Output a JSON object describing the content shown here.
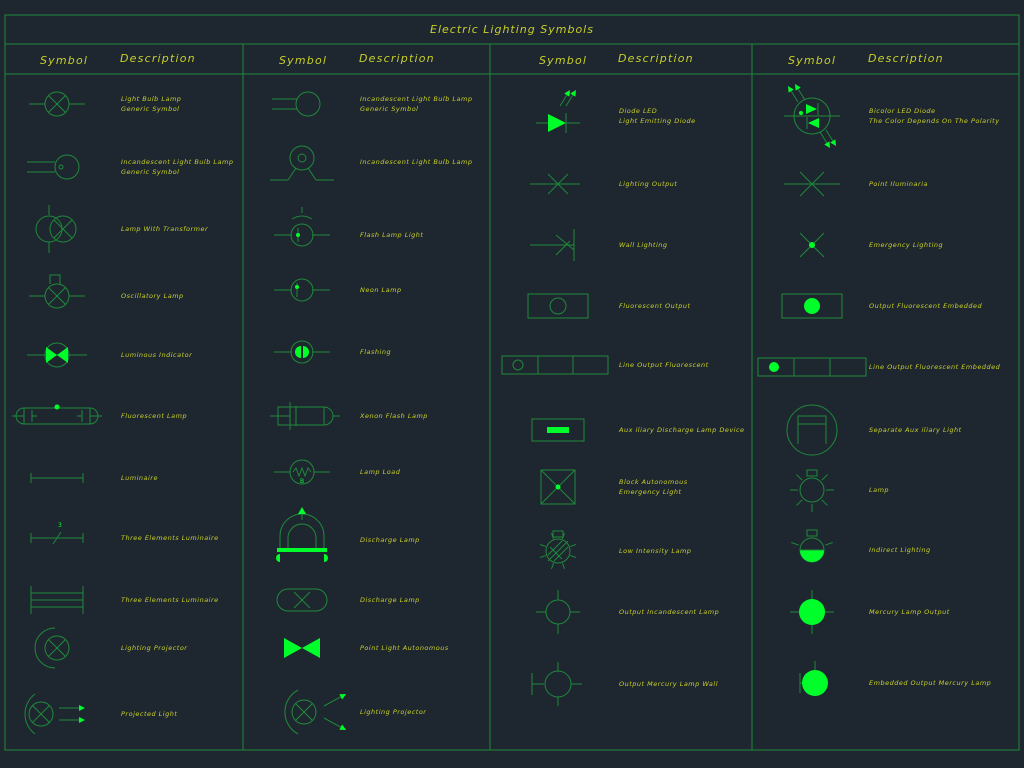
{
  "colors": {
    "background": "#1e2630",
    "line": "#1f8a3a",
    "symbol": "#00ff2a",
    "text": "#c8d028"
  },
  "title": "Electric Lighting Symbols",
  "headers": {
    "symbol": [
      "Symbol",
      "Symbol",
      "Symbol",
      "Symbol"
    ],
    "description": [
      "Description",
      "Description",
      "Description",
      "Description"
    ]
  },
  "columns": [
    {
      "items": [
        {
          "icon": "light-bulb-lamp-icon",
          "lines": [
            "Light Bulb Lamp",
            "Generic Symbol"
          ]
        },
        {
          "icon": "incandescent-lamp-icon",
          "lines": [
            "Incandescent Light Bulb Lamp",
            "Generic Symbol"
          ]
        },
        {
          "icon": "lamp-with-transformer-icon",
          "lines": [
            "Lamp With Transformer"
          ]
        },
        {
          "icon": "oscillatory-lamp-icon",
          "lines": [
            "Oscillatory Lamp"
          ]
        },
        {
          "icon": "luminous-indicator-icon",
          "lines": [
            "Luminous Indicator"
          ]
        },
        {
          "icon": "fluorescent-lamp-icon",
          "lines": [
            "Fluorescent Lamp"
          ]
        },
        {
          "icon": "luminaire-icon",
          "lines": [
            "Luminaire"
          ]
        },
        {
          "icon": "three-elements-luminaire-icon",
          "lines": [
            "Three Elements Luminaire"
          ]
        },
        {
          "icon": "three-elements-luminaire-bars-icon",
          "lines": [
            "Three Elements Luminaire"
          ]
        },
        {
          "icon": "lighting-projector-icon",
          "lines": [
            "Lighting Projector"
          ]
        },
        {
          "icon": "projected-light-icon",
          "lines": [
            "Projected Light"
          ]
        }
      ]
    },
    {
      "items": [
        {
          "icon": "incandescent-light-bulb-lamp-icon",
          "lines": [
            "Incandescent Light Bulb Lamp",
            "Generic Symbol"
          ]
        },
        {
          "icon": "incandescent-lamp-base-icon",
          "lines": [
            "Incandescent Light Bulb Lamp"
          ]
        },
        {
          "icon": "flash-lamp-light-icon",
          "lines": [
            "Flash Lamp Light"
          ]
        },
        {
          "icon": "neon-lamp-icon",
          "lines": [
            "Neon Lamp"
          ]
        },
        {
          "icon": "flashing-icon",
          "lines": [
            "Flashing"
          ]
        },
        {
          "icon": "xenon-flash-lamp-icon",
          "lines": [
            "Xenon Flash Lamp"
          ]
        },
        {
          "icon": "lamp-load-icon",
          "lines": [
            "Lamp Load"
          ]
        },
        {
          "icon": "discharge-lamp-icon",
          "lines": [
            "Discharge Lamp"
          ]
        },
        {
          "icon": "discharge-lamp-capsule-icon",
          "lines": [
            "Discharge Lamp"
          ]
        },
        {
          "icon": "point-light-autonomous-icon",
          "lines": [
            "Point Light Autonomous"
          ]
        },
        {
          "icon": "lighting-projector-arrows-icon",
          "lines": [
            "Lighting Projector"
          ]
        }
      ]
    },
    {
      "items": [
        {
          "icon": "diode-led-icon",
          "lines": [
            "Diode LED",
            "Light Emitting Diode"
          ]
        },
        {
          "icon": "lighting-output-icon",
          "lines": [
            "Lighting Output"
          ]
        },
        {
          "icon": "wall-lighting-icon",
          "lines": [
            "Wall Lighting"
          ]
        },
        {
          "icon": "fluorescent-output-icon",
          "lines": [
            "Fluorescent Output"
          ]
        },
        {
          "icon": "line-output-fluorescent-icon",
          "lines": [
            "Line Output Fluorescent"
          ]
        },
        {
          "icon": "auxiliary-discharge-lamp-device-icon",
          "lines": [
            "Aux iliary Discharge Lamp Device"
          ]
        },
        {
          "icon": "block-autonomous-emergency-light-icon",
          "lines": [
            "Block Autonomous",
            "Emergency Light"
          ]
        },
        {
          "icon": "low-intensity-lamp-icon",
          "lines": [
            "Low Intensity Lamp"
          ]
        },
        {
          "icon": "output-incandescent-lamp-icon",
          "lines": [
            "Output Incandescent Lamp"
          ]
        },
        {
          "icon": "output-mercury-lamp-wall-icon",
          "lines": [
            "Output Mercury Lamp Wall"
          ]
        }
      ]
    },
    {
      "items": [
        {
          "icon": "bicolor-led-diode-icon",
          "lines": [
            "Bicolor LED Diode",
            "The Color Depends On The Polarity"
          ]
        },
        {
          "icon": "point-iluminaria-icon",
          "lines": [
            "Point Iluminaria"
          ]
        },
        {
          "icon": "emergency-lighting-icon",
          "lines": [
            "Emergency Lighting"
          ]
        },
        {
          "icon": "output-fluorescent-embedded-icon",
          "lines": [
            "Output Fluorescent Embedded"
          ]
        },
        {
          "icon": "line-output-fluorescent-embedded-icon",
          "lines": [
            "Line Output Fluorescent Embedded"
          ]
        },
        {
          "icon": "separate-auxiliary-light-icon",
          "lines": [
            "Separate Aux iliary Light"
          ]
        },
        {
          "icon": "lamp-icon",
          "lines": [
            "Lamp"
          ]
        },
        {
          "icon": "indirect-lighting-icon",
          "lines": [
            "Indirect Lighting"
          ]
        },
        {
          "icon": "mercury-lamp-output-icon",
          "lines": [
            "Mercury Lamp Output"
          ]
        },
        {
          "icon": "embedded-output-mercury-lamp-icon",
          "lines": [
            "Embedded Output Mercury Lamp"
          ]
        }
      ]
    }
  ]
}
